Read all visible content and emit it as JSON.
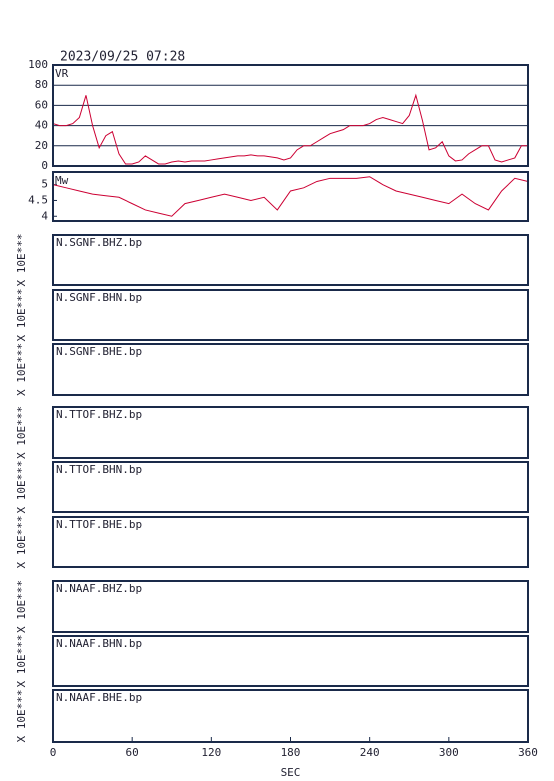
{
  "title": "2023/09/25 07:28",
  "chart_data": [
    {
      "type": "line",
      "ylabel": "VR",
      "xlabel": "SEC",
      "xlim": [
        0,
        360
      ],
      "xticks": [
        0,
        60,
        120,
        180,
        240,
        300,
        360
      ],
      "ylim": [
        0,
        100
      ],
      "yticks": [
        0,
        20,
        40,
        60,
        80,
        100
      ],
      "grid": true,
      "x": [
        0,
        5,
        10,
        15,
        20,
        25,
        30,
        35,
        40,
        45,
        50,
        55,
        60,
        65,
        70,
        75,
        80,
        85,
        90,
        95,
        100,
        105,
        110,
        115,
        120,
        125,
        130,
        135,
        140,
        145,
        150,
        155,
        160,
        165,
        170,
        175,
        180,
        185,
        190,
        195,
        200,
        205,
        210,
        215,
        220,
        225,
        230,
        235,
        240,
        245,
        250,
        255,
        260,
        265,
        270,
        275,
        280,
        285,
        290,
        295,
        300,
        305,
        310,
        315,
        320,
        325,
        330,
        335,
        340,
        345,
        350,
        355,
        360
      ],
      "series": [
        {
          "color": "#cc0033",
          "values": [
            42,
            40,
            40,
            42,
            48,
            70,
            40,
            18,
            30,
            34,
            12,
            2,
            2,
            4,
            10,
            6,
            2,
            2,
            4,
            5,
            4,
            5,
            5,
            5,
            6,
            7,
            8,
            9,
            10,
            10,
            11,
            10,
            10,
            9,
            8,
            6,
            8,
            16,
            20,
            20,
            24,
            28,
            32,
            34,
            36,
            40,
            40,
            40,
            42,
            46,
            48,
            46,
            44,
            42,
            50,
            70,
            45,
            16,
            18,
            24,
            10,
            5,
            6,
            12,
            16,
            20,
            20,
            6,
            4,
            6,
            8,
            20,
            20
          ]
        }
      ]
    },
    {
      "type": "line",
      "ylabel": "Mw",
      "xlim": [
        0,
        360
      ],
      "ylim": [
        3.85,
        5.4
      ],
      "yticks": [
        4.0,
        4.5,
        5.0
      ],
      "x": [
        0,
        10,
        20,
        30,
        40,
        50,
        60,
        70,
        80,
        90,
        100,
        110,
        120,
        130,
        140,
        150,
        160,
        170,
        180,
        190,
        200,
        210,
        220,
        230,
        240,
        250,
        260,
        270,
        280,
        290,
        300,
        310,
        320,
        330,
        340,
        350,
        360
      ],
      "series": [
        {
          "color": "#cc0033",
          "values": [
            5.0,
            4.9,
            4.8,
            4.7,
            4.65,
            4.6,
            4.4,
            4.2,
            4.1,
            4.0,
            4.4,
            4.5,
            4.6,
            4.7,
            4.6,
            4.5,
            4.6,
            4.2,
            4.8,
            4.9,
            5.1,
            5.2,
            5.2,
            5.2,
            5.25,
            5.0,
            4.8,
            4.7,
            4.6,
            4.5,
            4.4,
            4.7,
            4.4,
            4.2,
            4.8,
            5.2,
            5.1
          ]
        }
      ]
    }
  ],
  "traces": [
    {
      "label": "N.SGNF.BHZ.bp",
      "scale": "X 10E***"
    },
    {
      "label": "N.SGNF.BHN.bp",
      "scale": "X 10E***"
    },
    {
      "label": "N.SGNF.BHE.bp",
      "scale": "X 10E***"
    },
    {
      "label": "N.TTOF.BHZ.bp",
      "scale": "X 10E***"
    },
    {
      "label": "N.TTOF.BHN.bp",
      "scale": "X 10E***"
    },
    {
      "label": "N.TTOF.BHE.bp",
      "scale": "X 10E***"
    },
    {
      "label": "N.NAAF.BHZ.bp",
      "scale": "X 10E***"
    },
    {
      "label": "N.NAAF.BHN.bp",
      "scale": "X 10E***"
    },
    {
      "label": "N.NAAF.BHE.bp",
      "scale": "X 10E***"
    }
  ]
}
